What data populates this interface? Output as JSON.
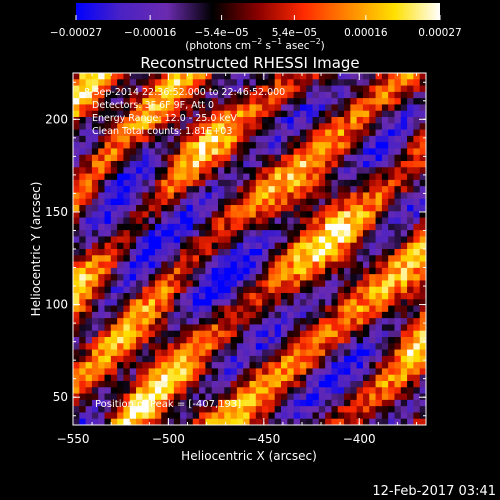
{
  "chart_data": {
    "type": "heatmap",
    "title": "Reconstructed RHESSI Image",
    "xlabel": "Heliocentric X (arcsec)",
    "ylabel": "Heliocentric Y (arcsec)",
    "xlim": [
      -550,
      -365
    ],
    "ylim": [
      35,
      225
    ],
    "x_ticks": [
      -550,
      -500,
      -450,
      -400
    ],
    "x_tick_labels": [
      "−550",
      "−500",
      "−450",
      "−400"
    ],
    "y_ticks": [
      50,
      100,
      150,
      200
    ],
    "y_tick_labels": [
      "50",
      "100",
      "150",
      "200"
    ],
    "colorbar": {
      "range": [
        -0.00027,
        0.00027
      ],
      "ticks": [
        -0.00027,
        -0.00016,
        -5.4e-05,
        5.4e-05,
        0.00016,
        0.00027
      ],
      "tick_labels": [
        "−0.00027",
        "−0.00016",
        "−5.4e−05",
        "5.4e−05",
        "0.00016",
        "0.00027"
      ],
      "unit_text": "(photons cm",
      "unit_sup1": "−2",
      "unit_mid": " s",
      "unit_sup2": "−1",
      "unit_end": " asec",
      "unit_sup3": "−2",
      "unit_close": ")",
      "colormap": [
        "#0000ff",
        "#4b22c4",
        "#6b2bb0",
        "#000000",
        "#8a0000",
        "#ff2a00",
        "#ff8800",
        "#ffe000",
        "#ffffff"
      ]
    },
    "annotations": [
      " 8-Sep-2014 22:36:52.000 to 22:46:52.000",
      "Detectors: 3F 6F 9F, Att 0",
      "Energy Range: 12.0 - 25.0 keV",
      "Clean     Total counts: 1.81E+03"
    ],
    "peak_label": "Position of Peak = [-407,193]",
    "peak": [
      -407,
      193
    ],
    "pattern": "diagonal fringe stripes running from upper-left to lower-right"
  },
  "footer_timestamp": "12-Feb-2017 03:41"
}
